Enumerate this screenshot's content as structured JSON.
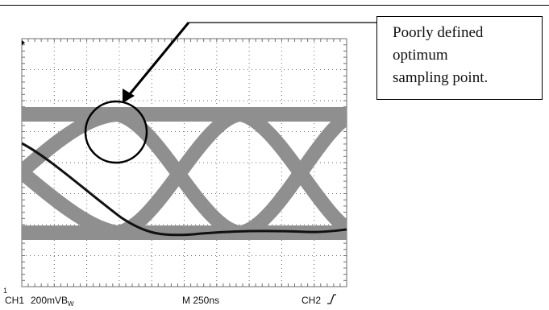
{
  "annotation": {
    "lines": [
      "Poorly defined",
      "optimum",
      "sampling point."
    ]
  },
  "status_bar": {
    "ch1_marker": "1",
    "channel": "CH1",
    "volts_per_div": "200mV",
    "volts_per_div_suffix": "B",
    "volts_per_div_sub": "W",
    "timebase": "M 250ns",
    "trigger_source": "CH2"
  },
  "colors": {
    "eye_trace": "#8f8f8f",
    "single_trace": "#111111",
    "grid": "#6e6e6e",
    "highlight_circle": "#000000"
  },
  "icons": {
    "trigger_slope": "rising-edge-icon",
    "ch1_marker": "ground-marker-icon"
  }
}
